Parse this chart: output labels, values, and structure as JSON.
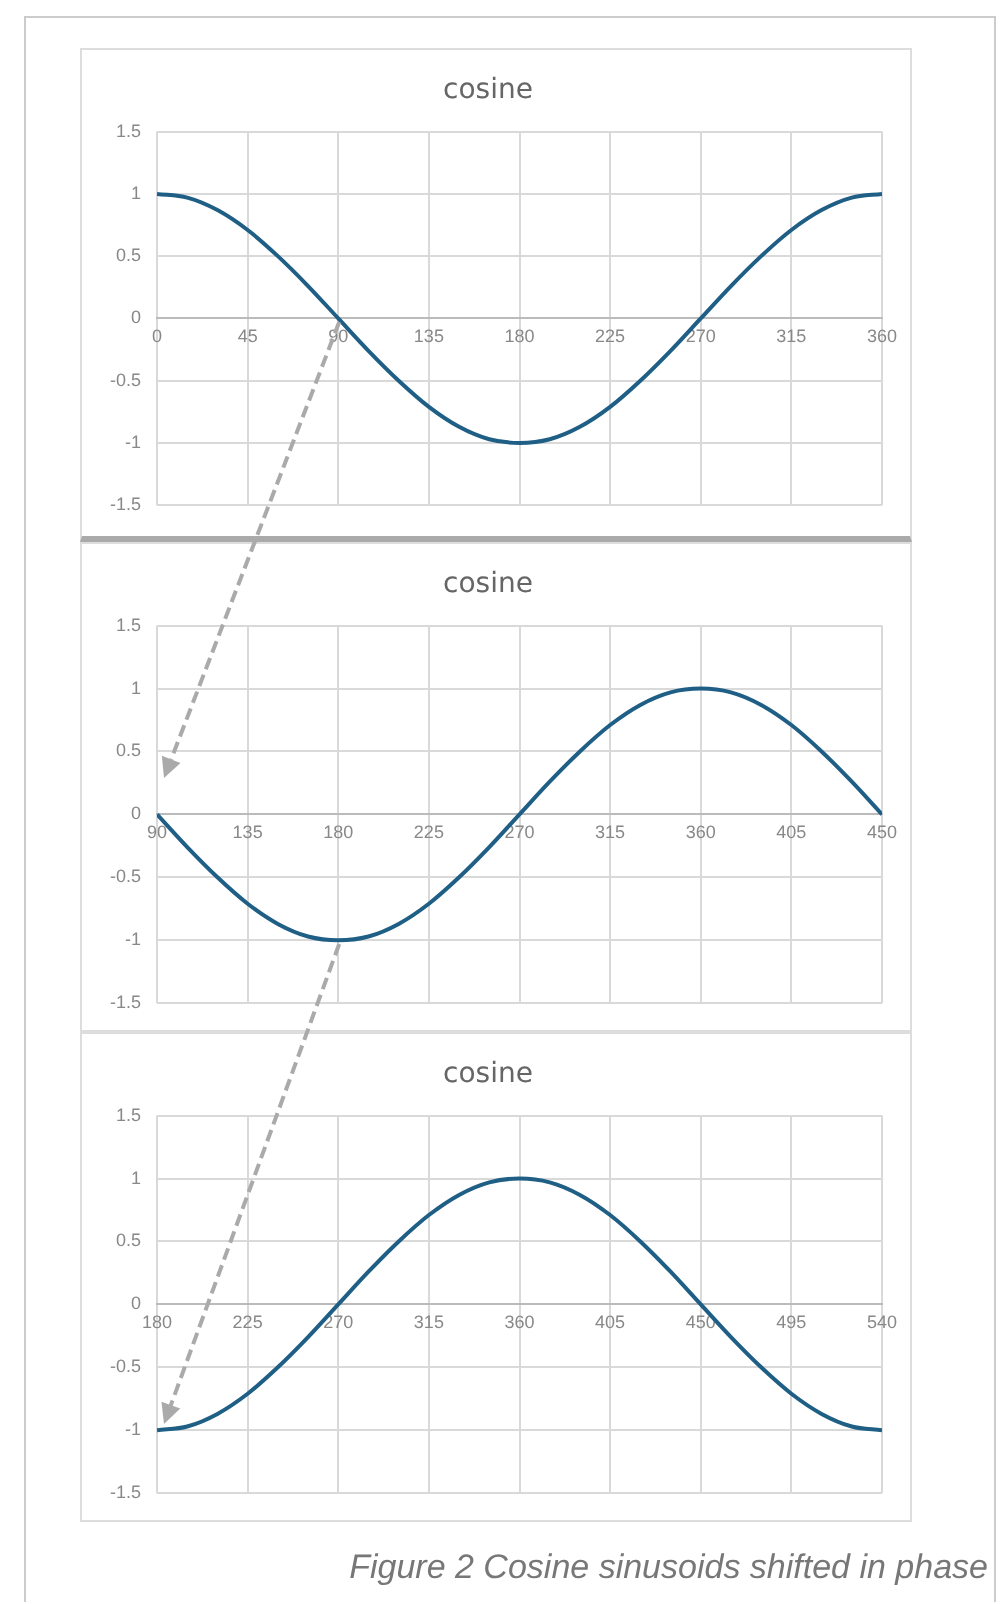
{
  "chart_data": [
    {
      "type": "line",
      "title": "cosine",
      "color": "#1f5f86",
      "marker": "none",
      "grid": true,
      "x": [
        0,
        15,
        30,
        45,
        60,
        75,
        90,
        105,
        120,
        135,
        150,
        165,
        180,
        195,
        210,
        225,
        240,
        255,
        270,
        285,
        300,
        315,
        330,
        345,
        360
      ],
      "values": [
        1,
        0.97,
        0.87,
        0.71,
        0.5,
        0.26,
        0,
        -0.26,
        -0.5,
        -0.71,
        -0.87,
        -0.97,
        -1,
        -0.97,
        -0.87,
        -0.71,
        -0.5,
        -0.26,
        0,
        0.26,
        0.5,
        0.71,
        0.87,
        0.97,
        1
      ],
      "xlim": [
        0,
        360
      ],
      "xticks": [
        0,
        45,
        90,
        135,
        180,
        225,
        270,
        315,
        360
      ],
      "ylim": [
        -1.5,
        1.5
      ],
      "yticks": [
        -1.5,
        -1,
        -0.5,
        0,
        0.5,
        1,
        1.5
      ]
    },
    {
      "type": "line",
      "title": "cosine",
      "color": "#1f5f86",
      "marker": "none",
      "grid": true,
      "x": [
        90,
        105,
        120,
        135,
        150,
        165,
        180,
        195,
        210,
        225,
        240,
        255,
        270,
        285,
        300,
        315,
        330,
        345,
        360,
        375,
        390,
        405,
        420,
        435,
        450
      ],
      "values": [
        0,
        -0.26,
        -0.5,
        -0.71,
        -0.87,
        -0.97,
        -1,
        -0.97,
        -0.87,
        -0.71,
        -0.5,
        -0.26,
        0,
        0.26,
        0.5,
        0.71,
        0.87,
        0.97,
        1,
        0.97,
        0.87,
        0.71,
        0.5,
        0.26,
        0
      ],
      "xlim": [
        90,
        450
      ],
      "xticks": [
        90,
        135,
        180,
        225,
        270,
        315,
        360,
        405,
        450
      ],
      "ylim": [
        -1.5,
        1.5
      ],
      "yticks": [
        -1.5,
        -1,
        -0.5,
        0,
        0.5,
        1,
        1.5
      ]
    },
    {
      "type": "line",
      "title": "cosine",
      "color": "#1f5f86",
      "marker": "none",
      "grid": true,
      "x": [
        180,
        195,
        210,
        225,
        240,
        255,
        270,
        285,
        300,
        315,
        330,
        345,
        360,
        375,
        390,
        405,
        420,
        435,
        450,
        465,
        480,
        495,
        510,
        525,
        540
      ],
      "values": [
        -1,
        -0.97,
        -0.87,
        -0.71,
        -0.5,
        -0.26,
        0,
        0.26,
        0.5,
        0.71,
        0.87,
        0.97,
        1,
        0.97,
        0.87,
        0.71,
        0.5,
        0.26,
        0,
        -0.26,
        -0.5,
        -0.71,
        -0.87,
        -0.97,
        -1
      ],
      "xlim": [
        180,
        540
      ],
      "xticks": [
        180,
        225,
        270,
        315,
        360,
        405,
        450,
        495,
        540
      ],
      "ylim": [
        -1.5,
        1.5
      ],
      "yticks": [
        -1.5,
        -1,
        -0.5,
        0,
        0.5,
        1,
        1.5
      ],
      "annotations": [
        "Figure 2 Cosine sinusoids shifted in phase"
      ]
    }
  ]
}
